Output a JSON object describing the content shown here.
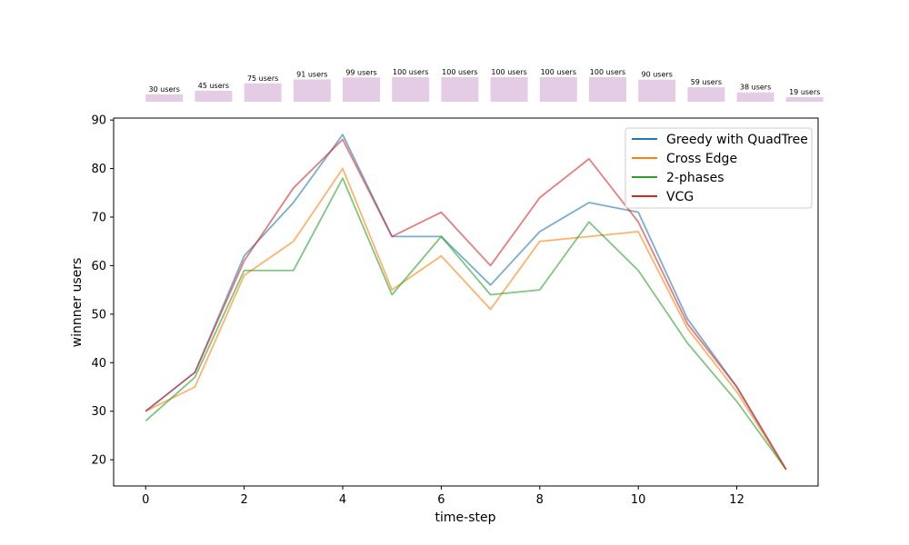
{
  "chart_data": {
    "type": "line",
    "xlabel": "time-step",
    "ylabel": "winnner users",
    "xlim": [
      -0.65,
      13.65
    ],
    "ylim": [
      14.6,
      90.4
    ],
    "x_ticks": [
      0,
      2,
      4,
      6,
      8,
      10,
      12
    ],
    "y_ticks": [
      20,
      30,
      40,
      50,
      60,
      70,
      80,
      90
    ],
    "x": [
      0,
      1,
      2,
      3,
      4,
      5,
      6,
      7,
      8,
      9,
      10,
      11,
      12,
      13
    ],
    "legend_position": "top-right",
    "grid": false,
    "series": [
      {
        "name": "Greedy with QuadTree",
        "color": "#1f77b4",
        "values": [
          30,
          38,
          62,
          73,
          87,
          66,
          66,
          56,
          67,
          73,
          71,
          49,
          35,
          18
        ]
      },
      {
        "name": "Cross Edge",
        "color": "#ff7f0e",
        "values": [
          30,
          35,
          58,
          65,
          80,
          55,
          62,
          51,
          65,
          66,
          67,
          47,
          34,
          18
        ]
      },
      {
        "name": "2-phases",
        "color": "#2ca02c",
        "values": [
          28,
          37,
          59,
          59,
          78,
          54,
          66,
          54,
          55,
          69,
          59,
          44,
          32,
          18
        ]
      },
      {
        "name": "VCG",
        "color": "#d62728",
        "values": [
          30,
          38,
          61,
          76,
          86,
          66,
          71,
          60,
          74,
          82,
          69,
          48,
          35,
          18
        ]
      }
    ],
    "user_bars": {
      "color": "#e5cce5",
      "max": 100,
      "values": [
        30,
        45,
        75,
        91,
        99,
        100,
        100,
        100,
        100,
        100,
        90,
        59,
        38,
        19
      ],
      "labels": [
        "30 users",
        "45 users",
        "75 users",
        "91 users",
        "99 users",
        "100 users",
        "100 users",
        "100 users",
        "100 users",
        "100 users",
        "90 users",
        "59 users",
        "38 users",
        "19 users"
      ]
    }
  }
}
